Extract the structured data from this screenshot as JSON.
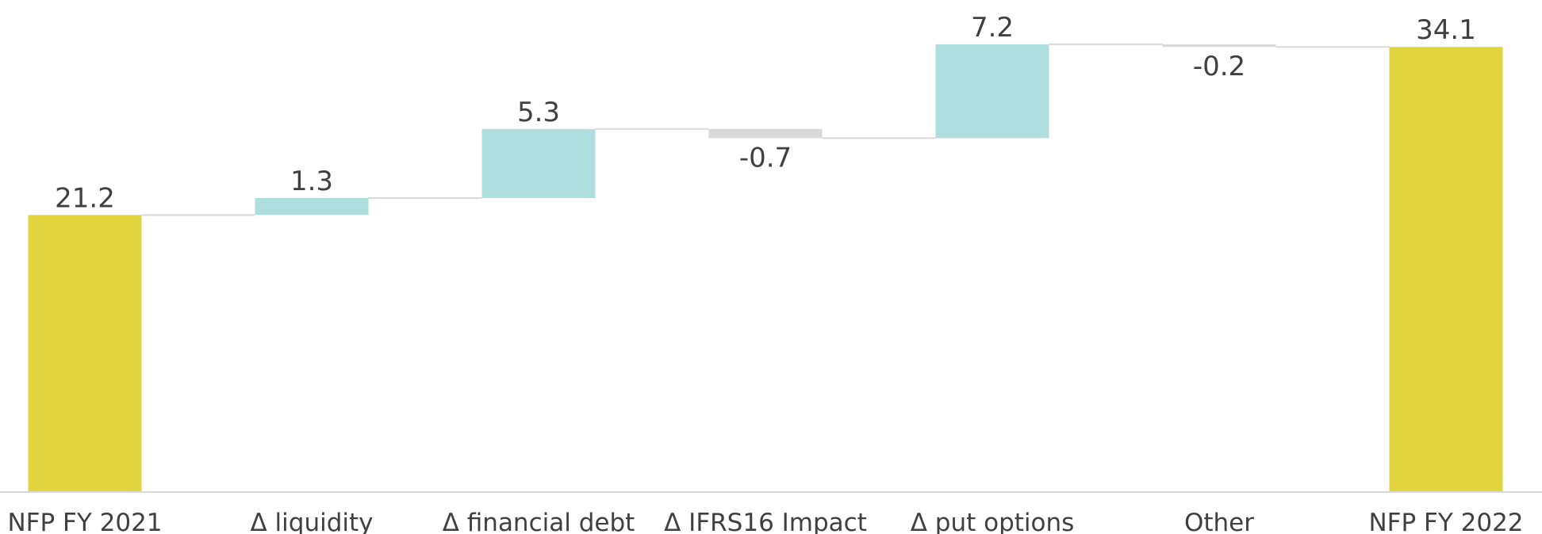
{
  "chart_data": {
    "type": "waterfall",
    "categories": [
      "NFP FY 2021",
      "Δ liquidity",
      "Δ financial debt",
      "Δ IFRS16 Impact",
      "Δ put options",
      "Other",
      "NFP FY 2022"
    ],
    "values": [
      21.2,
      1.3,
      5.3,
      -0.7,
      7.2,
      -0.2,
      34.1
    ],
    "totals": [
      0,
      6
    ],
    "colors": {
      "total": "#e2d53f",
      "increase": "#afdede",
      "decrease": "#d9d9d9"
    },
    "ylim": [
      0,
      37.7
    ]
  }
}
